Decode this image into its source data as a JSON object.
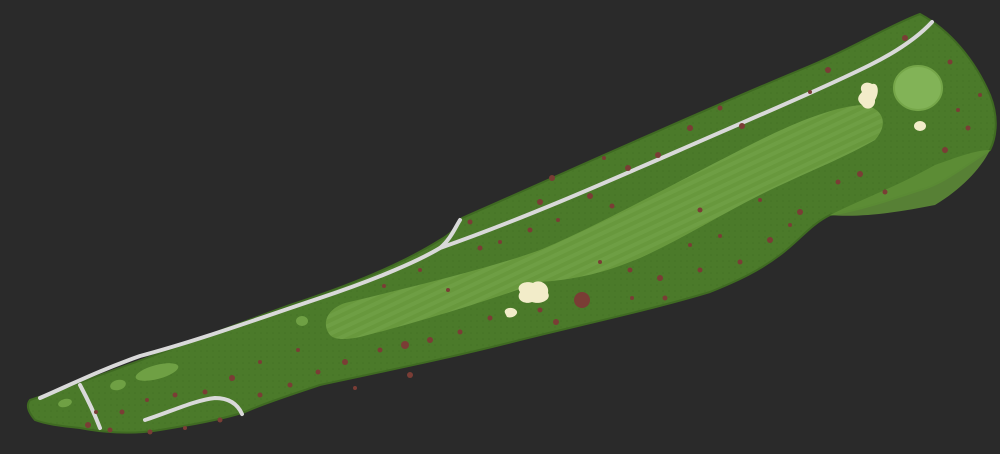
{
  "map": {
    "view": "golf-hole-overhead",
    "background_color": "#2a2a2a",
    "colors": {
      "rough": "#4b7a2a",
      "rough_edge": "#3f6a22",
      "fairway": "#6a9a3e",
      "fairway_stripe": "#74a447",
      "green": "#82b357",
      "tee": "#6fa044",
      "bunker": "#f2ecc9",
      "cart_path": "#d9d9d9",
      "trees": "#7a3d35",
      "slope": "#5f8f37"
    },
    "features": [
      {
        "name": "rough",
        "icon": "rough-area"
      },
      {
        "name": "fairway",
        "icon": "fairway-area"
      },
      {
        "name": "green",
        "icon": "green-area"
      },
      {
        "name": "tee-boxes",
        "icon": "tee-box"
      },
      {
        "name": "bunkers",
        "icon": "sand-bunker"
      },
      {
        "name": "cart-path",
        "icon": "path-line"
      },
      {
        "name": "trees",
        "icon": "tree-dot"
      }
    ]
  }
}
